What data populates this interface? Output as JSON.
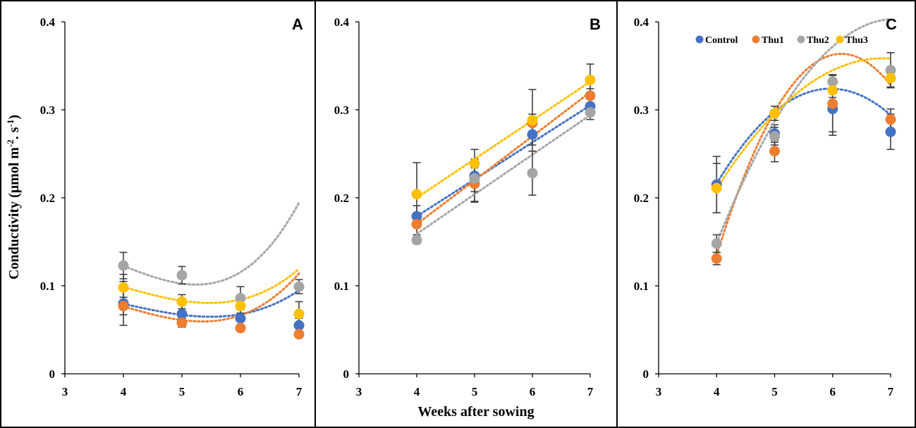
{
  "colors": {
    "Control": "#4472c4",
    "Thu1": "#ed7d31",
    "Thu2": "#a5a5a5",
    "Thu3": "#ffc000",
    "errorbar": "#404040"
  },
  "chart_data": [
    {
      "type": "scatter",
      "panel": "A",
      "title": "",
      "xlabel": "",
      "ylabel": "Conductivity (μmol m-2. s-1)",
      "ylabel_parts": {
        "main": "Conductivity (μmol m",
        "sup1": "-2",
        "mid": ". s",
        "sup2": "-1",
        "end": ")"
      },
      "xlim": [
        3,
        7
      ],
      "ylim": [
        0,
        0.4
      ],
      "x_ticks": [
        "3",
        "4",
        "5",
        "6",
        "7"
      ],
      "y_ticks": [
        "0",
        "0.1",
        "0.2",
        "0.3",
        "0.4"
      ],
      "x": [
        4,
        5,
        6,
        7
      ],
      "series": [
        {
          "name": "Control",
          "values": [
            0.08,
            0.068,
            0.063,
            0.055
          ],
          "errors": [
            0.025,
            0.01,
            0.01,
            0.008
          ],
          "trend": [
            0.0795,
            -0.0147,
            0.0,
            0.0022
          ]
        },
        {
          "name": "Thu1",
          "values": [
            0.077,
            0.058,
            0.052,
            0.045
          ],
          "errors": [
            0.01,
            0.005,
            0.004,
            0.003
          ],
          "trend": [
            0.0765,
            -0.019,
            0.0,
            0.0035
          ]
        },
        {
          "name": "Thu2",
          "values": [
            0.123,
            0.112,
            0.086,
            0.099
          ],
          "errors": [
            0.015,
            0.01,
            0.013,
            0.008
          ],
          "trend": [
            0.1225,
            -0.0255,
            0.0,
            0.0055
          ]
        },
        {
          "name": "Thu3",
          "values": [
            0.098,
            0.082,
            0.077,
            0.068
          ],
          "errors": [
            0.015,
            0.008,
            0.008,
            0.014
          ],
          "trend": [
            0.0985,
            -0.0183,
            0.0,
            0.0028
          ]
        }
      ]
    },
    {
      "type": "scatter",
      "panel": "B",
      "title": "",
      "xlabel": "Weeks after sowing",
      "ylabel": "",
      "xlim": [
        3,
        7
      ],
      "ylim": [
        0,
        0.4
      ],
      "x_ticks": [
        "3",
        "4",
        "5",
        "6",
        "7"
      ],
      "y_ticks": [
        "0",
        "0.1",
        "0.2",
        "0.3",
        "0.4"
      ],
      "x": [
        4,
        5,
        6,
        7
      ],
      "series": [
        {
          "name": "Control",
          "values": [
            0.179,
            0.225,
            0.272,
            0.304
          ],
          "errors": [
            0.012,
            0.03,
            0.012,
            0.008
          ],
          "trend": [
            0.179,
            0.042,
            0.0,
            0.0
          ]
        },
        {
          "name": "Thu1",
          "values": [
            0.17,
            0.216,
            0.285,
            0.316
          ],
          "errors": [
            0.012,
            0.02,
            0.01,
            0.008
          ],
          "trend": [
            0.17,
            0.05,
            0.0,
            0.0
          ]
        },
        {
          "name": "Thu2",
          "values": [
            0.152,
            0.222,
            0.228,
            0.297
          ],
          "errors": [
            0.004,
            0.015,
            0.025,
            0.008
          ],
          "trend": [
            0.159,
            0.045,
            0.0,
            0.0
          ]
        },
        {
          "name": "Thu3",
          "values": [
            0.204,
            0.239,
            0.288,
            0.334
          ],
          "errors": [
            0.036,
            0.005,
            0.035,
            0.018
          ],
          "trend": [
            0.2,
            0.044,
            0.0,
            0.0
          ]
        }
      ]
    },
    {
      "type": "scatter",
      "panel": "C",
      "title": "",
      "xlabel": "",
      "ylabel": "",
      "xlim": [
        3,
        7
      ],
      "ylim": [
        0,
        0.4
      ],
      "x_ticks": [
        "3",
        "4",
        "5",
        "6",
        "7"
      ],
      "y_ticks": [
        "0",
        "0.1",
        "0.2",
        "0.3",
        "0.4"
      ],
      "x": [
        4,
        5,
        6,
        7
      ],
      "legend": {
        "position": "top",
        "entries": [
          "Control",
          "Thu1",
          "Thu2",
          "Thu3"
        ]
      },
      "series": [
        {
          "name": "Control",
          "values": [
            0.215,
            0.273,
            0.301,
            0.275
          ],
          "errors": [
            0.032,
            0.01,
            0.03,
            0.02
          ],
          "trend": [
            0.216,
            0.11,
            -0.028,
            0.0
          ]
        },
        {
          "name": "Thu1",
          "values": [
            0.131,
            0.253,
            0.307,
            0.289
          ],
          "errors": [
            0.007,
            0.012,
            0.032,
            0.012
          ],
          "trend": [
            0.1345,
            0.213,
            -0.0495,
            0.0
          ]
        },
        {
          "name": "Thu2",
          "values": [
            0.148,
            0.27,
            0.332,
            0.345
          ],
          "errors": [
            0.01,
            0.01,
            0.008,
            0.02
          ],
          "trend": [
            0.1484,
            0.1653,
            -0.0268,
            0.0
          ]
        },
        {
          "name": "Thu3",
          "values": [
            0.211,
            0.296,
            0.322,
            0.336
          ],
          "errors": [
            0.028,
            0.008,
            0.008,
            0.01
          ],
          "trend": [
            0.2103,
            0.1033,
            -0.018,
            0.0
          ]
        }
      ]
    }
  ]
}
